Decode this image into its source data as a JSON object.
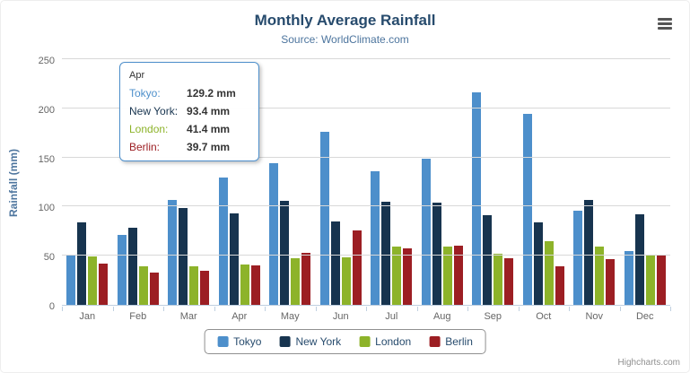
{
  "chart": {
    "title": "Monthly Average Rainfall",
    "subtitle": "Source: WorldClimate.com",
    "credits": "Highcharts.com"
  },
  "tooltip": {
    "category": "Apr",
    "border_color": "#4d8fcb",
    "rows": [
      {
        "label": "Tokyo:",
        "value": "129.2 mm",
        "color": "#4d8fcb"
      },
      {
        "label": "New York:",
        "value": "93.4 mm",
        "color": "#17344f"
      },
      {
        "label": "London:",
        "value": "41.4 mm",
        "color": "#8db32a"
      },
      {
        "label": "Berlin:",
        "value": "39.7 mm",
        "color": "#9c1e23"
      }
    ]
  },
  "chart_data": {
    "type": "bar",
    "title": "Monthly Average Rainfall",
    "subtitle": "Source: WorldClimate.com",
    "categories": [
      "Jan",
      "Feb",
      "Mar",
      "Apr",
      "May",
      "Jun",
      "Jul",
      "Aug",
      "Sep",
      "Oct",
      "Nov",
      "Dec"
    ],
    "series": [
      {
        "name": "Tokyo",
        "color": "#4d8fcb",
        "values": [
          49.9,
          71.5,
          106.4,
          129.2,
          144.0,
          176.0,
          135.6,
          148.5,
          216.4,
          194.1,
          95.6,
          54.4
        ]
      },
      {
        "name": "New York",
        "color": "#17344f",
        "values": [
          83.6,
          78.8,
          98.5,
          93.4,
          106.0,
          84.5,
          105.0,
          104.3,
          91.2,
          83.5,
          106.6,
          92.3
        ]
      },
      {
        "name": "London",
        "color": "#8db32a",
        "values": [
          48.9,
          38.8,
          39.3,
          41.4,
          47.0,
          48.3,
          59.0,
          59.6,
          52.4,
          65.2,
          59.3,
          51.2
        ]
      },
      {
        "name": "Berlin",
        "color": "#9c1e23",
        "values": [
          42.4,
          33.2,
          34.5,
          39.7,
          52.6,
          75.5,
          57.4,
          60.4,
          47.6,
          39.1,
          46.8,
          51.1
        ]
      }
    ],
    "xlabel": "",
    "ylabel": "Rainfall (mm)",
    "ylim": [
      0,
      250
    ],
    "ytick_interval": 50,
    "grid": true,
    "legend_position": "bottom"
  }
}
